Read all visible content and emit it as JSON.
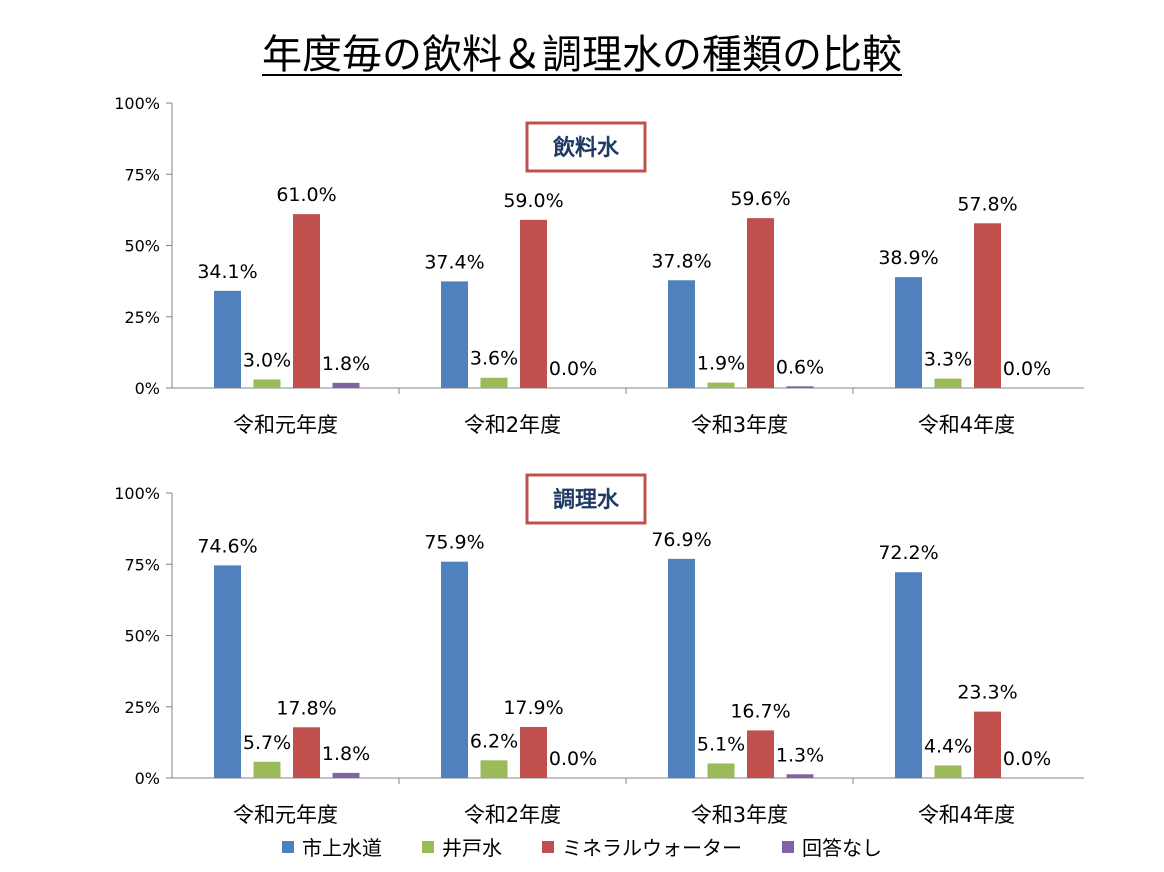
{
  "title": "年度毎の飲料＆調理水の種類の比較",
  "colors": {
    "tap": "#4f81bd",
    "well": "#9bbb59",
    "mineral": "#c0504d",
    "none": "#8064a2",
    "box_border": "#c0504d"
  },
  "legend": [
    "市上水道",
    "井戸水",
    "ミネラルウォーター",
    "回答なし"
  ],
  "chart_data": [
    {
      "type": "bar",
      "title": "飲料水",
      "categories": [
        "令和元年度",
        "令和2年度",
        "令和3年度",
        "令和4年度"
      ],
      "ylim": [
        0,
        100
      ],
      "yticks": [
        "0%",
        "25%",
        "50%",
        "75%",
        "100%"
      ],
      "series": [
        {
          "name": "市上水道",
          "values": [
            34.1,
            37.4,
            37.8,
            38.9
          ],
          "labels": [
            "34.1%",
            "37.4%",
            "37.8%",
            "38.9%"
          ]
        },
        {
          "name": "井戸水",
          "values": [
            3.0,
            3.6,
            1.9,
            3.3
          ],
          "labels": [
            "3.0%",
            "3.6%",
            "1.9%",
            "3.3%"
          ]
        },
        {
          "name": "ミネラルウォーター",
          "values": [
            61.0,
            59.0,
            59.6,
            57.8
          ],
          "labels": [
            "61.0%",
            "59.0%",
            "59.6%",
            "57.8%"
          ]
        },
        {
          "name": "回答なし",
          "values": [
            1.8,
            0.0,
            0.6,
            0.0
          ],
          "labels": [
            "1.8%",
            "0.0%",
            "0.6%",
            "0.0%"
          ]
        }
      ]
    },
    {
      "type": "bar",
      "title": "調理水",
      "categories": [
        "令和元年度",
        "令和2年度",
        "令和3年度",
        "令和4年度"
      ],
      "ylim": [
        0,
        100
      ],
      "yticks": [
        "0%",
        "25%",
        "50%",
        "75%",
        "100%"
      ],
      "series": [
        {
          "name": "市上水道",
          "values": [
            74.6,
            75.9,
            76.9,
            72.2
          ],
          "labels": [
            "74.6%",
            "75.9%",
            "76.9%",
            "72.2%"
          ]
        },
        {
          "name": "井戸水",
          "values": [
            5.7,
            6.2,
            5.1,
            4.4
          ],
          "labels": [
            "5.7%",
            "6.2%",
            "5.1%",
            "4.4%"
          ]
        },
        {
          "name": "ミネラルウォーター",
          "values": [
            17.8,
            17.9,
            16.7,
            23.3
          ],
          "labels": [
            "17.8%",
            "17.9%",
            "16.7%",
            "23.3%"
          ]
        },
        {
          "name": "回答なし",
          "values": [
            1.8,
            0.0,
            1.3,
            0.0
          ],
          "labels": [
            "1.8%",
            "0.0%",
            "1.3%",
            "0.0%"
          ]
        }
      ]
    }
  ]
}
